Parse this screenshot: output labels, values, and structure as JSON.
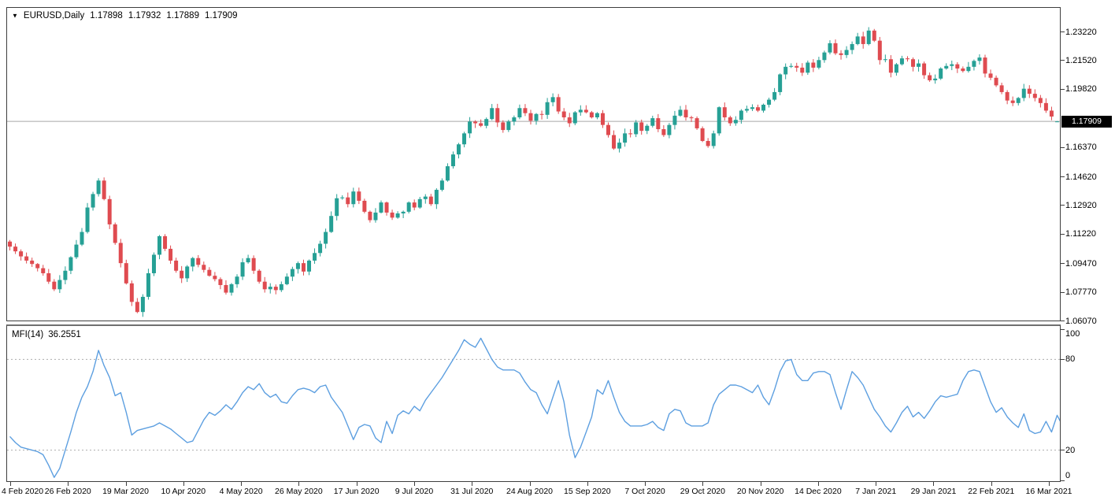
{
  "header": {
    "expander_icon": "▼",
    "symbol_period": "EURUSD,Daily",
    "quote": {
      "open": "1.17898",
      "high": "1.17932",
      "low": "1.17889",
      "close": "1.17909"
    }
  },
  "indicator_header": {
    "label": "MFI(14)",
    "value": "36.2551"
  },
  "colors": {
    "bull": "#26a095",
    "bear": "#df4b50",
    "mfi_line": "#5d9fe0",
    "level_dotted": "#adadad",
    "current_price_line": "#a6a6a6",
    "price_box_bg": "#000000",
    "price_box_text": "#ffffff",
    "frame": "#3e3e3e",
    "text": "#000000"
  },
  "chart_data": [
    {
      "type": "candlestick",
      "title": "EURUSD,Daily",
      "symbol": "EURUSD",
      "timeframe": "Daily",
      "grid": false,
      "y_axis_ticks": [
        {
          "label": "1.23220",
          "value": 1.2322
        },
        {
          "label": "1.21520",
          "value": 1.2152
        },
        {
          "label": "1.19820",
          "value": 1.1982
        },
        {
          "label": "1.16370",
          "value": 1.1637
        },
        {
          "label": "1.14620",
          "value": 1.1462
        },
        {
          "label": "1.12920",
          "value": 1.1292
        },
        {
          "label": "1.11220",
          "value": 1.1122
        },
        {
          "label": "1.09470",
          "value": 1.0947
        },
        {
          "label": "1.07770",
          "value": 1.0777
        },
        {
          "label": "1.06070",
          "value": 1.0607
        }
      ],
      "current_price": {
        "label": "1.17909",
        "value": 1.17909
      },
      "x_tick_labels": [
        "4 Feb 2020",
        "26 Feb 2020",
        "19 Mar 2020",
        "10 Apr 2020",
        "4 May 2020",
        "26 May 2020",
        "17 Jun 2020",
        "9 Jul 2020",
        "31 Jul 2020",
        "24 Aug 2020",
        "15 Sep 2020",
        "7 Oct 2020",
        "29 Oct 2020",
        "20 Nov 2020",
        "14 Dec 2020",
        "7 Jan 2021",
        "29 Jan 2021",
        "22 Feb 2021",
        "16 Mar 2021"
      ],
      "price_range_shown": [
        1.0607,
        1.2322
      ],
      "first_open": 1.1078,
      "closes": [
        1.1048,
        1.102,
        1.099,
        1.0965,
        1.0945,
        1.092,
        1.089,
        1.084,
        1.0795,
        1.085,
        1.0905,
        1.0985,
        1.106,
        1.1135,
        1.128,
        1.136,
        1.144,
        1.133,
        1.118,
        1.107,
        1.095,
        1.083,
        1.072,
        1.066,
        1.075,
        1.089,
        1.1,
        1.111,
        1.1035,
        1.0965,
        1.0905,
        1.086,
        1.093,
        1.098,
        1.094,
        1.091,
        1.0875,
        1.0855,
        1.082,
        1.0775,
        1.0825,
        1.087,
        1.0955,
        1.098,
        1.0905,
        1.084,
        1.0795,
        1.081,
        1.079,
        1.0825,
        1.087,
        1.0915,
        1.095,
        1.09,
        1.0965,
        1.101,
        1.1065,
        1.1135,
        1.123,
        1.1335,
        1.134,
        1.13,
        1.1375,
        1.132,
        1.1255,
        1.1205,
        1.125,
        1.131,
        1.125,
        1.122,
        1.1245,
        1.1255,
        1.131,
        1.128,
        1.133,
        1.1345,
        1.13,
        1.1385,
        1.144,
        1.1525,
        1.1595,
        1.1655,
        1.172,
        1.179,
        1.178,
        1.1765,
        1.1805,
        1.187,
        1.1785,
        1.174,
        1.179,
        1.1815,
        1.187,
        1.184,
        1.1795,
        1.1835,
        1.183,
        1.1905,
        1.1935,
        1.185,
        1.1815,
        1.178,
        1.1845,
        1.186,
        1.1845,
        1.1815,
        1.184,
        1.177,
        1.171,
        1.163,
        1.1665,
        1.172,
        1.1715,
        1.1785,
        1.1735,
        1.1765,
        1.181,
        1.1745,
        1.171,
        1.177,
        1.1825,
        1.186,
        1.1815,
        1.181,
        1.175,
        1.1675,
        1.1645,
        1.172,
        1.1875,
        1.1815,
        1.178,
        1.18,
        1.1855,
        1.1865,
        1.1875,
        1.1855,
        1.189,
        1.192,
        1.1965,
        1.207,
        1.2115,
        1.212,
        1.211,
        1.208,
        1.214,
        1.211,
        1.2155,
        1.22,
        1.2255,
        1.2195,
        1.2185,
        1.2215,
        1.225,
        1.2295,
        1.225,
        1.233,
        1.227,
        1.2155,
        1.216,
        1.208,
        1.213,
        1.2165,
        1.216,
        1.2115,
        1.2135,
        1.2065,
        1.2035,
        1.2045,
        1.2105,
        1.212,
        1.213,
        1.2105,
        1.209,
        1.2115,
        1.215,
        1.217,
        1.2075,
        1.205,
        1.2005,
        1.1965,
        1.1915,
        1.19,
        1.193,
        1.1985,
        1.1955,
        1.193,
        1.19,
        1.1855,
        1.182,
        1.17909
      ],
      "last_candle": {
        "open": 1.17898,
        "high": 1.17932,
        "low": 1.17889,
        "close": 1.17909
      }
    },
    {
      "type": "line",
      "title": "MFI(14)",
      "indicator": "Money Flow Index",
      "period": 14,
      "current_value": 36.2551,
      "levels": [
        20,
        80
      ],
      "y_axis_ticks": [
        100,
        80,
        20,
        0
      ],
      "y_range": [
        0,
        100
      ],
      "values": [
        29,
        25,
        22,
        21,
        20,
        19,
        17,
        10,
        2,
        8,
        20,
        32,
        45,
        55,
        62,
        72,
        86,
        76,
        68,
        56,
        58,
        45,
        30,
        33,
        34,
        35,
        36,
        38,
        36,
        34,
        31,
        28,
        25,
        26,
        33,
        40,
        45,
        43,
        46,
        50,
        47,
        52,
        58,
        62,
        60,
        64,
        58,
        55,
        57,
        52,
        51,
        56,
        60,
        61,
        60,
        58,
        62,
        63,
        55,
        50,
        45,
        36,
        27,
        35,
        37,
        36,
        28,
        25,
        39,
        31,
        43,
        46,
        44,
        49,
        46,
        53,
        58,
        63,
        68,
        74,
        80,
        86,
        93,
        90,
        88,
        94,
        87,
        80,
        75,
        73,
        73,
        73,
        71,
        65,
        60,
        58,
        50,
        44,
        55,
        66,
        52,
        30,
        15,
        22,
        32,
        42,
        60,
        57,
        66,
        55,
        45,
        39,
        36,
        36,
        36,
        37,
        39,
        35,
        33,
        44,
        47,
        46,
        38,
        36,
        36,
        36,
        38,
        50,
        57,
        60,
        63,
        63,
        62,
        60,
        58,
        63,
        55,
        50,
        60,
        72,
        79,
        80,
        70,
        66,
        66,
        71,
        72,
        72,
        70,
        58,
        47,
        60,
        72,
        68,
        63,
        55,
        47,
        42,
        36,
        32,
        38,
        45,
        49,
        42,
        45,
        41,
        46,
        52,
        56,
        55,
        56,
        57,
        66,
        72,
        73,
        72,
        62,
        52,
        45,
        48,
        42,
        38,
        35,
        44,
        33,
        31,
        32,
        39,
        32,
        43,
        36.3
      ]
    }
  ]
}
